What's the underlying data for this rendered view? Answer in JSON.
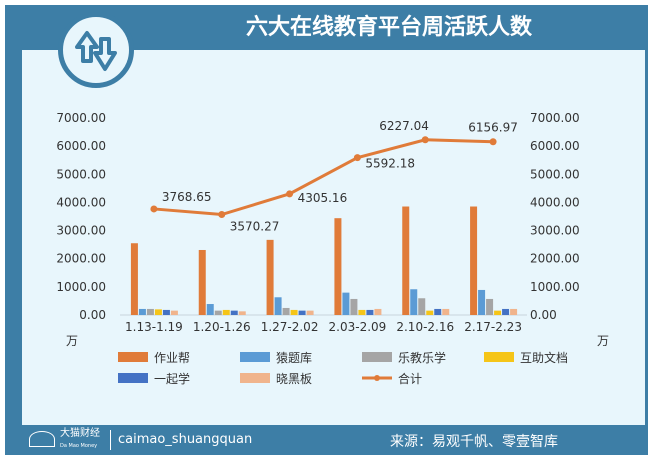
{
  "header": {
    "title": "六大在线教育平台周活跃人数"
  },
  "footer": {
    "brand": "大猫财经",
    "brand_sub": "Da Mao Money",
    "account": "caimao_shuangquan",
    "source": "来源：易观千帆、零壹智库"
  },
  "chart_data": {
    "type": "bar",
    "title": "六大在线教育平台周活跃人数",
    "unit": "万",
    "categories": [
      "1.13-1.19",
      "1.20-1.26",
      "1.27-2.02",
      "2.03-2.09",
      "2.10-2.16",
      "2.17-2.23"
    ],
    "ylim": [
      0,
      7000
    ],
    "yticks": [
      "0.00",
      "1000.00",
      "2000.00",
      "3000.00",
      "4000.00",
      "5000.00",
      "6000.00",
      "7000.00"
    ],
    "series": [
      {
        "name": "作业帮",
        "color": "#e07b39",
        "values": [
          2550,
          2310,
          2670,
          3440,
          3855,
          3855
        ]
      },
      {
        "name": "猿题库",
        "color": "#5b9bd5",
        "values": [
          215,
          390,
          630,
          795,
          915,
          890
        ]
      },
      {
        "name": "乐教乐学",
        "color": "#a5a5a5",
        "values": [
          215,
          155,
          250,
          570,
          595,
          570
        ]
      },
      {
        "name": "互助文档",
        "color": "#f5c518",
        "values": [
          200,
          180,
          180,
          180,
          155,
          155
        ]
      },
      {
        "name": "一起学",
        "color": "#4472c4",
        "values": [
          180,
          155,
          155,
          180,
          215,
          215
        ]
      },
      {
        "name": "晓黑板",
        "color": "#f0b48c",
        "values": [
          155,
          130,
          155,
          215,
          215,
          215
        ]
      }
    ],
    "line": {
      "name": "合计",
      "color": "#e07b39",
      "values": [
        3768.65,
        3570.27,
        4305.16,
        5592.18,
        6227.04,
        6156.97
      ],
      "labels": [
        "3768.65",
        "3570.27",
        "4305.16",
        "5592.18",
        "6227.04",
        "6156.97"
      ]
    },
    "legend": "bottom"
  }
}
